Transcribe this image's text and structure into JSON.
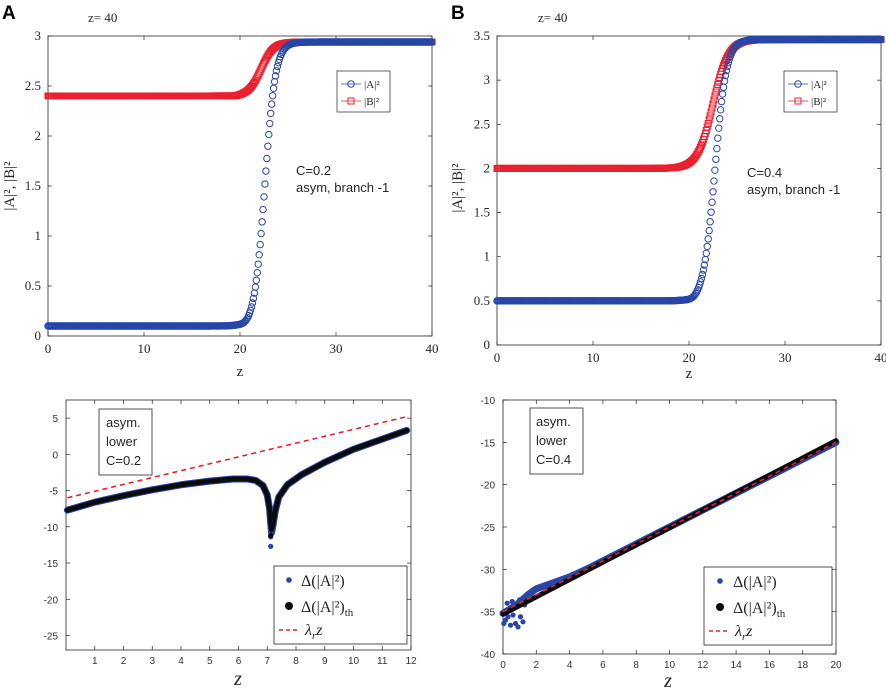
{
  "panels": {
    "a": "A",
    "b": "B"
  },
  "chart_data": [
    {
      "id": "A-top",
      "type": "scatter",
      "header": "z= 40",
      "xlabel": "z",
      "ylabel": "|A|², |B|²",
      "xlim": [
        0,
        40
      ],
      "ylim": [
        0,
        3
      ],
      "xticks": [
        0,
        10,
        20,
        30,
        40
      ],
      "yticks": [
        0,
        0.5,
        1,
        1.5,
        2,
        2.5,
        3
      ],
      "xtick_labels": [
        "0",
        "10",
        "20",
        "30",
        "40"
      ],
      "ytick_labels": [
        "0",
        "0.5",
        "1",
        "1.5",
        "2",
        "2.5",
        "3"
      ],
      "annotation": [
        "C=0.2",
        "asym, branch -1"
      ],
      "legend": [
        "|A|²",
        "|B|²"
      ],
      "series": [
        {
          "name": "|A|²",
          "color": "#2746a8",
          "marker": "circle",
          "start": 0.1,
          "end": 2.94,
          "center": 22.6,
          "width": 0.55,
          "dip_at": 20.8,
          "dip": 0.02
        },
        {
          "name": "|B|²",
          "color": "#e8202f",
          "marker": "square",
          "start": 2.4,
          "end": 2.94,
          "center": 22.2,
          "width": 0.65,
          "dip_at": 19.5,
          "dip": 0.005
        }
      ]
    },
    {
      "id": "B-top",
      "type": "scatter",
      "header": "z= 40",
      "xlabel": "z",
      "ylabel": "|A|², |B|²",
      "xlim": [
        0,
        40
      ],
      "ylim": [
        0,
        3.5
      ],
      "xticks": [
        0,
        10,
        20,
        30,
        40
      ],
      "yticks": [
        0,
        0.5,
        1,
        1.5,
        2,
        2.5,
        3,
        3.5
      ],
      "xtick_labels": [
        "0",
        "10",
        "20",
        "30",
        "40"
      ],
      "ytick_labels": [
        "0",
        "0.5",
        "1",
        "1.5",
        "2",
        "2.5",
        "3",
        "3.5"
      ],
      "annotation": [
        "C=0.4",
        "asym, branch -1"
      ],
      "legend": [
        "|A|²",
        "|B|²"
      ],
      "series": [
        {
          "name": "|A|²",
          "color": "#2746a8",
          "marker": "circle",
          "start": 0.5,
          "end": 3.46,
          "center": 22.7,
          "width": 0.6,
          "dip_at": 20.5,
          "dip": 0.02
        },
        {
          "name": "|B|²",
          "color": "#e8202f",
          "marker": "square",
          "start": 2.0,
          "end": 3.46,
          "center": 22.5,
          "width": 0.8,
          "dip_at": 19.5,
          "dip": 0.0
        }
      ]
    },
    {
      "id": "A-bottom",
      "type": "line",
      "xlabel": "z",
      "xlim": [
        0,
        12
      ],
      "ylim": [
        -27,
        7.5
      ],
      "xticks": [
        1,
        2,
        3,
        4,
        5,
        6,
        7,
        8,
        9,
        10,
        11,
        12
      ],
      "yticks": [
        5,
        0,
        -5,
        -10,
        -15,
        -20,
        -25
      ],
      "xtick_labels": [
        "1",
        "2",
        "3",
        "4",
        "5",
        "6",
        "7",
        "8",
        "9",
        "10",
        "11",
        "12"
      ],
      "ytick_labels": [
        "5",
        "0",
        "-5",
        "-10",
        "-15",
        "-20",
        "-25"
      ],
      "annotation": [
        "asym.",
        "lower",
        "C=0.2"
      ],
      "legend": [
        "Δ(|A|²)",
        "Δ(|A|²)",
        "th",
        "λ",
        "r",
        "z"
      ],
      "series": [
        {
          "name": "Δ(|A|²)",
          "color": "#2746a8",
          "points": [
            [
              0.05,
              -7.7
            ],
            [
              1,
              -6.6
            ],
            [
              2,
              -5.7
            ],
            [
              3,
              -4.9
            ],
            [
              4,
              -4.2
            ],
            [
              5,
              -3.7
            ],
            [
              5.8,
              -3.4
            ],
            [
              6.3,
              -3.4
            ],
            [
              6.6,
              -3.6
            ],
            [
              6.85,
              -4.3
            ],
            [
              7.0,
              -5.6
            ],
            [
              7.08,
              -7.5
            ],
            [
              7.12,
              -9.5
            ],
            [
              7.15,
              -10.8
            ],
            [
              7.2,
              -9.8
            ],
            [
              7.28,
              -7.8
            ],
            [
              7.4,
              -5.9
            ],
            [
              7.7,
              -4.2
            ],
            [
              8.2,
              -2.8
            ],
            [
              9,
              -1.1
            ],
            [
              10,
              0.7
            ],
            [
              11,
              2.1
            ],
            [
              11.85,
              3.3
            ]
          ],
          "outliers": [
            [
              7.12,
              -12.7
            ],
            [
              7.12,
              -11.4
            ],
            [
              7.2,
              -9.9
            ]
          ]
        },
        {
          "name": "Δ(|A|²)th",
          "color": "#0b0b0b",
          "points": [
            [
              0.05,
              -7.7
            ],
            [
              1,
              -6.6
            ],
            [
              2,
              -5.7
            ],
            [
              3,
              -4.9
            ],
            [
              4,
              -4.2
            ],
            [
              5,
              -3.7
            ],
            [
              5.8,
              -3.4
            ],
            [
              6.3,
              -3.4
            ],
            [
              6.6,
              -3.6
            ],
            [
              6.85,
              -4.3
            ],
            [
              7.0,
              -5.6
            ],
            [
              7.08,
              -7.5
            ],
            [
              7.12,
              -9.5
            ],
            [
              7.15,
              -10.4
            ],
            [
              7.2,
              -9.6
            ],
            [
              7.28,
              -7.8
            ],
            [
              7.4,
              -5.9
            ],
            [
              7.7,
              -4.2
            ],
            [
              8.2,
              -2.8
            ],
            [
              9,
              -1.1
            ],
            [
              10,
              0.7
            ],
            [
              11,
              2.1
            ],
            [
              11.85,
              3.3
            ]
          ],
          "outliers": [
            [
              7.12,
              -11.2
            ]
          ]
        },
        {
          "name": "λr z",
          "color": "#e8202f",
          "style": "dashed",
          "points": [
            [
              0.05,
              -6.0
            ],
            [
              11.85,
              5.2
            ]
          ]
        }
      ]
    },
    {
      "id": "B-bottom",
      "type": "line",
      "xlabel": "z",
      "xlim": [
        0,
        20
      ],
      "ylim": [
        -40,
        -10
      ],
      "xticks": [
        0,
        2,
        4,
        6,
        8,
        10,
        12,
        14,
        16,
        18,
        20
      ],
      "yticks": [
        -10,
        -15,
        -20,
        -25,
        -30,
        -35,
        -40
      ],
      "xtick_labels": [
        "0",
        "2",
        "4",
        "6",
        "8",
        "10",
        "12",
        "14",
        "16",
        "18",
        "20"
      ],
      "ytick_labels": [
        "-10",
        "-15",
        "-20",
        "-25",
        "-30",
        "-35",
        "-40"
      ],
      "annotation": [
        "asym.",
        "lower",
        "C=0.4"
      ],
      "legend": [
        "Δ(|A|²)",
        "Δ(|A|²)",
        "th",
        "λ",
        "r",
        "z"
      ],
      "series": [
        {
          "name": "Δ(|A|²)",
          "color": "#2746a8",
          "points": [
            [
              0.0,
              -35.2
            ],
            [
              0.5,
              -34.6
            ],
            [
              1.0,
              -33.9
            ],
            [
              1.5,
              -33.0
            ],
            [
              2,
              -32.3
            ],
            [
              3,
              -31.6
            ],
            [
              4,
              -30.9
            ],
            [
              5,
              -30.0
            ],
            [
              6,
              -29.0
            ],
            [
              8,
              -27.0
            ],
            [
              10,
              -25.0
            ],
            [
              12,
              -23.0
            ],
            [
              14,
              -21.0
            ],
            [
              16,
              -19.0
            ],
            [
              18,
              -17.0
            ],
            [
              20,
              -15.0
            ]
          ],
          "outliers": [
            [
              0.05,
              -36.4
            ],
            [
              0.15,
              -36.0
            ],
            [
              0.3,
              -35.6
            ],
            [
              0.45,
              -36.6
            ],
            [
              0.6,
              -35.4
            ],
            [
              0.75,
              -36.4
            ],
            [
              0.9,
              -36.8
            ],
            [
              1.05,
              -35.6
            ],
            [
              1.2,
              -36.2
            ],
            [
              0.25,
              -34.0
            ],
            [
              0.55,
              -33.8
            ],
            [
              0.8,
              -34.4
            ],
            [
              1.0,
              -33.6
            ],
            [
              1.3,
              -34.2
            ],
            [
              1.6,
              -32.8
            ]
          ]
        },
        {
          "name": "Δ(|A|²)th",
          "color": "#0b0b0b",
          "points": [
            [
              0.0,
              -35.3
            ],
            [
              20,
              -14.8
            ]
          ],
          "outliers": []
        },
        {
          "name": "λr z",
          "color": "#e8202f",
          "style": "dashed",
          "points": [
            [
              0.0,
              -35.0
            ],
            [
              20,
              -15.0
            ]
          ]
        }
      ]
    }
  ]
}
